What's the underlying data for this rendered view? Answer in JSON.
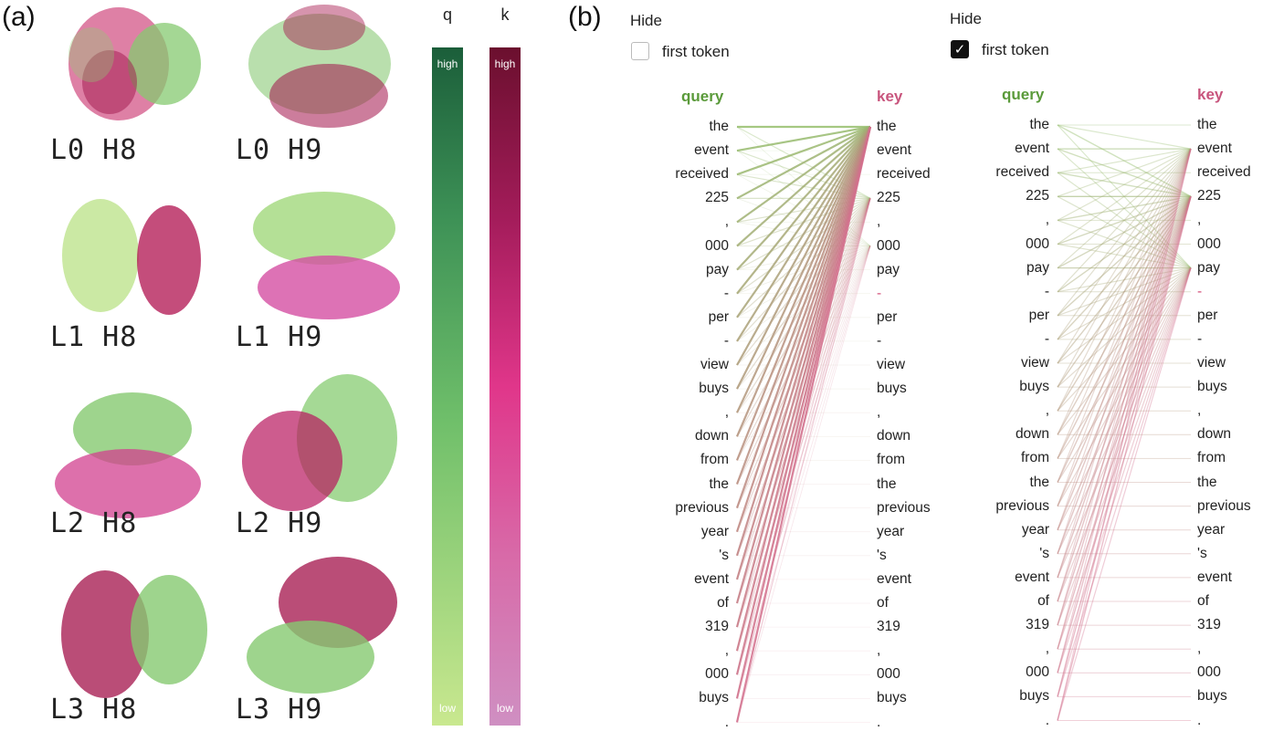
{
  "panel_a": {
    "label": "(a)",
    "scatter_labels": [
      "L0 H8",
      "L0 H9",
      "L1 H8",
      "L1 H9",
      "L2 H8",
      "L2 H9",
      "L3 H8",
      "L3 H9"
    ],
    "q_bar": {
      "title": "q",
      "high": "high",
      "low": "low"
    },
    "k_bar": {
      "title": "k",
      "high": "high",
      "low": "low"
    }
  },
  "panel_b": {
    "label": "(b)",
    "left": {
      "hide_label": "Hide",
      "checkbox_label": "first token",
      "checked": false,
      "query_header": "query",
      "key_header": "key"
    },
    "right": {
      "hide_label": "Hide",
      "checkbox_label": "first token",
      "checked": true,
      "query_header": "query",
      "key_header": "key"
    },
    "tokens": [
      "the",
      "event",
      "received",
      "225",
      ",",
      "000",
      "pay",
      "-",
      "per",
      "-",
      "view",
      "buys",
      ",",
      "down",
      "from",
      "the",
      "previous",
      "year",
      "'s",
      "event",
      "of",
      "319",
      ",",
      "000",
      "buys",
      "."
    ]
  },
  "colors": {
    "query_green": "#5a9a3a",
    "key_pink": "#c8557d",
    "q_high": "#1b5e3a",
    "q_low": "#c9e88f",
    "k_high": "#6b0f2e",
    "k_low": "#cf8fc2"
  }
}
